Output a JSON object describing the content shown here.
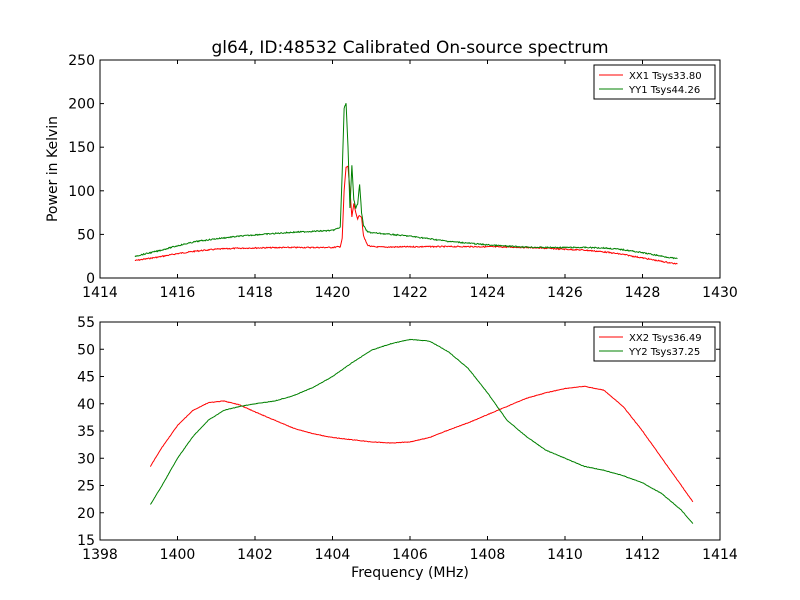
{
  "figure_title": "gl64, ID:48532 Calibrated On-source spectrum",
  "colors": {
    "xx": "#ff0000",
    "yy": "#008000",
    "axes": "#000000"
  },
  "chart_data": [
    {
      "type": "line",
      "title": "gl64, ID:48532 Calibrated On-source spectrum",
      "xlabel": "",
      "ylabel": "Power in Kelvin",
      "xlim": [
        1414,
        1430
      ],
      "ylim": [
        0,
        250
      ],
      "xticks": [
        1414,
        1416,
        1418,
        1420,
        1422,
        1424,
        1426,
        1428,
        1430
      ],
      "yticks": [
        0,
        50,
        100,
        150,
        200,
        250
      ],
      "grid": false,
      "legend": "top-right",
      "series": [
        {
          "name": "XX1 Tsys33.80",
          "color": "#ff0000",
          "x": [
            1414.9,
            1415.5,
            1416.0,
            1416.5,
            1417.0,
            1417.5,
            1418.0,
            1418.5,
            1419.0,
            1419.5,
            1420.0,
            1420.2,
            1420.25,
            1420.3,
            1420.35,
            1420.4,
            1420.45,
            1420.5,
            1420.55,
            1420.6,
            1420.65,
            1420.7,
            1420.75,
            1420.8,
            1420.9,
            1421.0,
            1421.2,
            1421.5,
            1422.0,
            1422.5,
            1423.0,
            1423.5,
            1424.0,
            1424.5,
            1425.0,
            1425.5,
            1426.0,
            1426.5,
            1427.0,
            1427.5,
            1428.0,
            1428.5,
            1428.9
          ],
          "y": [
            20,
            24,
            28,
            31,
            33,
            34,
            34.5,
            34.8,
            35,
            35,
            35,
            36,
            45,
            100,
            127,
            128,
            100,
            70,
            85,
            75,
            68,
            72,
            70,
            48,
            38,
            36,
            35.5,
            35.5,
            35.8,
            36,
            36,
            36,
            35.8,
            35.5,
            35,
            34,
            33,
            32,
            30,
            27,
            23,
            19,
            16
          ]
        },
        {
          "name": "YY1 Tsys44.26",
          "color": "#008000",
          "x": [
            1414.9,
            1415.5,
            1416.0,
            1416.5,
            1417.0,
            1417.5,
            1418.0,
            1418.5,
            1419.0,
            1419.5,
            1420.0,
            1420.2,
            1420.25,
            1420.3,
            1420.35,
            1420.4,
            1420.45,
            1420.5,
            1420.55,
            1420.6,
            1420.65,
            1420.7,
            1420.75,
            1420.8,
            1420.9,
            1421.0,
            1421.5,
            1422.0,
            1422.5,
            1423.0,
            1423.5,
            1424.0,
            1424.5,
            1425.0,
            1425.5,
            1426.0,
            1426.5,
            1427.0,
            1427.5,
            1428.0,
            1428.5,
            1428.9
          ],
          "y": [
            25,
            31,
            37,
            42,
            45,
            47.5,
            49.5,
            51,
            52.5,
            53.5,
            54.5,
            58,
            120,
            195,
            200,
            150,
            80,
            130,
            90,
            80,
            85,
            108,
            75,
            60,
            53,
            52,
            50,
            48,
            45,
            42,
            40,
            38,
            36.5,
            35.5,
            35,
            35,
            35,
            34.5,
            32.5,
            29,
            25,
            22
          ]
        }
      ]
    },
    {
      "type": "line",
      "title": "",
      "xlabel": "Frequency (MHz)",
      "ylabel": "",
      "xlim": [
        1398,
        1414
      ],
      "ylim": [
        15,
        55
      ],
      "xticks": [
        1398,
        1400,
        1402,
        1404,
        1406,
        1408,
        1410,
        1412,
        1414
      ],
      "yticks": [
        15,
        20,
        25,
        30,
        35,
        40,
        45,
        50,
        55
      ],
      "grid": false,
      "legend": "top-right",
      "series": [
        {
          "name": "XX2 Tsys36.49",
          "color": "#ff0000",
          "x": [
            1399.3,
            1399.6,
            1400.0,
            1400.4,
            1400.8,
            1401.2,
            1401.6,
            1402.0,
            1402.5,
            1403.0,
            1403.5,
            1404.0,
            1404.5,
            1405.0,
            1405.5,
            1406.0,
            1406.5,
            1407.0,
            1407.5,
            1408.0,
            1408.5,
            1409.0,
            1409.5,
            1410.0,
            1410.5,
            1411.0,
            1411.5,
            1412.0,
            1412.5,
            1413.0,
            1413.3
          ],
          "y": [
            28.5,
            32,
            36,
            38.8,
            40.2,
            40.5,
            39.8,
            38.5,
            37,
            35.5,
            34.5,
            33.8,
            33.4,
            33.0,
            32.8,
            33.0,
            33.8,
            35.2,
            36.5,
            38,
            39.5,
            41,
            42,
            42.8,
            43.2,
            42.5,
            39.5,
            35,
            30,
            25,
            22
          ]
        },
        {
          "name": "YY2 Tsys37.25",
          "color": "#008000",
          "x": [
            1399.3,
            1399.6,
            1400.0,
            1400.4,
            1400.8,
            1401.2,
            1401.6,
            1402.0,
            1402.5,
            1403.0,
            1403.5,
            1404.0,
            1404.5,
            1405.0,
            1405.5,
            1406.0,
            1406.5,
            1407.0,
            1407.5,
            1408.0,
            1408.5,
            1409.0,
            1409.5,
            1410.0,
            1410.5,
            1411.0,
            1411.5,
            1412.0,
            1412.5,
            1413.0,
            1413.3
          ],
          "y": [
            21.5,
            25,
            30,
            34,
            37,
            38.8,
            39.5,
            40,
            40.5,
            41.5,
            43,
            45,
            47.5,
            49.8,
            51,
            51.8,
            51.5,
            49.5,
            46.5,
            42,
            37,
            34,
            31.5,
            30,
            28.5,
            27.8,
            26.8,
            25.5,
            23.5,
            20.5,
            18
          ]
        }
      ]
    }
  ]
}
